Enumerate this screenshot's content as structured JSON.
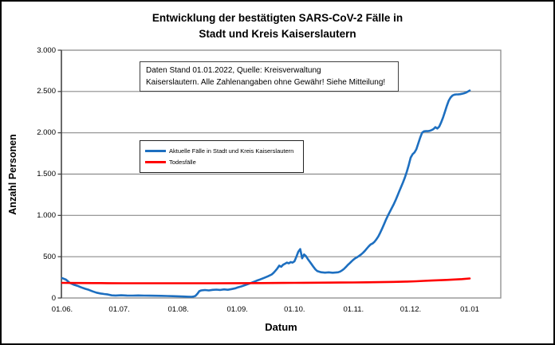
{
  "title": {
    "line1": "Entwicklung der bestätigten SARS-CoV-2 Fälle in",
    "line2": "Stadt und Kreis Kaiserslautern"
  },
  "annotation": {
    "line1": "Daten Stand 01.01.2022, Quelle: Kreisverwaltung",
    "line2": "Kaiserslautern. Alle Zahlenangaben ohne Gewähr! Siehe Mitteilung!"
  },
  "y_axis": {
    "title": "Anzahl Personen",
    "tick_labels": [
      "0",
      "500",
      "1.000",
      "1.500",
      "2.000",
      "2.500",
      "3.000"
    ],
    "tick_values": [
      0,
      500,
      1000,
      1500,
      2000,
      2500,
      3000
    ]
  },
  "x_axis": {
    "title": "Datum",
    "tick_labels": [
      "01.06.",
      "01.07.",
      "01.08.",
      "01.09.",
      "01.10.",
      "01.11.",
      "01.12.",
      "01.01"
    ],
    "tick_days": [
      0,
      30,
      61,
      92,
      122,
      153,
      183,
      214
    ]
  },
  "legend": {
    "items": [
      {
        "label": "Aktuelle Fälle in Stadt und Kreis Kaiserslautern",
        "color": "#1d6fc0"
      },
      {
        "label": "Todesfälle",
        "color": "#ff0000"
      }
    ]
  },
  "colors": {
    "series_active": "#1d6fc0",
    "series_deaths": "#ff0000",
    "gridline": "#8c8c8c",
    "plot_border": "#8c8c8c",
    "axis": "#3a3a3a",
    "text": "#000000",
    "background": "#ffffff"
  },
  "chart_data": {
    "type": "line",
    "title": "Entwicklung der bestätigten SARS-CoV-2 Fälle in Stadt und Kreis Kaiserslautern",
    "xlabel": "Datum",
    "ylabel": "Anzahl Personen",
    "ylim": [
      0,
      3000
    ],
    "grid": true,
    "legend_position": "inside-upper-left",
    "x_unit": "days since 01.06.2021 (0 = 01.06., 214 = 01.01.)",
    "x_tick_labels": [
      "01.06.",
      "01.07.",
      "01.08.",
      "01.09.",
      "01.10.",
      "01.11.",
      "01.12.",
      "01.01"
    ],
    "x_tick_days": [
      0,
      30,
      61,
      92,
      122,
      153,
      183,
      214
    ],
    "series": [
      {
        "name": "Aktuelle Fälle in Stadt und Kreis Kaiserslautern",
        "color": "#1d6fc0",
        "points": [
          [
            0,
            240
          ],
          [
            2,
            222
          ],
          [
            4,
            182
          ],
          [
            6,
            162
          ],
          [
            8,
            148
          ],
          [
            10,
            128
          ],
          [
            12,
            112
          ],
          [
            14,
            98
          ],
          [
            16,
            80
          ],
          [
            18,
            65
          ],
          [
            20,
            55
          ],
          [
            22,
            48
          ],
          [
            24,
            42
          ],
          [
            26,
            32
          ],
          [
            28,
            30
          ],
          [
            31,
            33
          ],
          [
            34,
            30
          ],
          [
            37,
            29
          ],
          [
            40,
            31
          ],
          [
            43,
            29
          ],
          [
            46,
            28
          ],
          [
            49,
            27
          ],
          [
            52,
            26
          ],
          [
            55,
            24
          ],
          [
            58,
            22
          ],
          [
            61,
            20
          ],
          [
            64,
            17
          ],
          [
            66,
            15
          ],
          [
            68,
            14
          ],
          [
            69,
            17
          ],
          [
            70,
            25
          ],
          [
            71,
            50
          ],
          [
            72,
            82
          ],
          [
            73,
            92
          ],
          [
            75,
            96
          ],
          [
            77,
            92
          ],
          [
            79,
            98
          ],
          [
            81,
            101
          ],
          [
            83,
            97
          ],
          [
            85,
            104
          ],
          [
            87,
            99
          ],
          [
            89,
            108
          ],
          [
            91,
            118
          ],
          [
            92,
            126
          ],
          [
            94,
            140
          ],
          [
            96,
            155
          ],
          [
            98,
            172
          ],
          [
            100,
            190
          ],
          [
            102,
            208
          ],
          [
            104,
            225
          ],
          [
            106,
            243
          ],
          [
            108,
            262
          ],
          [
            110,
            285
          ],
          [
            111,
            305
          ],
          [
            112,
            330
          ],
          [
            113,
            358
          ],
          [
            114,
            392
          ],
          [
            115,
            378
          ],
          [
            116,
            402
          ],
          [
            117,
            415
          ],
          [
            118,
            428
          ],
          [
            119,
            420
          ],
          [
            120,
            435
          ],
          [
            121,
            428
          ],
          [
            122,
            445
          ],
          [
            123,
            500
          ],
          [
            124,
            560
          ],
          [
            125,
            592
          ],
          [
            126,
            480
          ],
          [
            127,
            528
          ],
          [
            128,
            508
          ],
          [
            129,
            472
          ],
          [
            130,
            440
          ],
          [
            131,
            408
          ],
          [
            132,
            375
          ],
          [
            133,
            345
          ],
          [
            134,
            325
          ],
          [
            136,
            312
          ],
          [
            138,
            307
          ],
          [
            140,
            311
          ],
          [
            142,
            306
          ],
          [
            144,
            310
          ],
          [
            145,
            312
          ],
          [
            146,
            320
          ],
          [
            147,
            335
          ],
          [
            148,
            352
          ],
          [
            149,
            375
          ],
          [
            150,
            400
          ],
          [
            151,
            422
          ],
          [
            152,
            445
          ],
          [
            153,
            465
          ],
          [
            154,
            482
          ],
          [
            155,
            495
          ],
          [
            156,
            510
          ],
          [
            157,
            528
          ],
          [
            158,
            548
          ],
          [
            159,
            572
          ],
          [
            160,
            600
          ],
          [
            161,
            625
          ],
          [
            162,
            648
          ],
          [
            163,
            660
          ],
          [
            164,
            680
          ],
          [
            165,
            710
          ],
          [
            166,
            745
          ],
          [
            167,
            790
          ],
          [
            168,
            840
          ],
          [
            169,
            890
          ],
          [
            170,
            945
          ],
          [
            171,
            995
          ],
          [
            172,
            1040
          ],
          [
            173,
            1085
          ],
          [
            174,
            1130
          ],
          [
            175,
            1180
          ],
          [
            176,
            1235
          ],
          [
            177,
            1290
          ],
          [
            178,
            1345
          ],
          [
            179,
            1400
          ],
          [
            180,
            1460
          ],
          [
            181,
            1530
          ],
          [
            182,
            1610
          ],
          [
            183,
            1700
          ],
          [
            184,
            1740
          ],
          [
            185,
            1762
          ],
          [
            186,
            1800
          ],
          [
            187,
            1870
          ],
          [
            188,
            1940
          ],
          [
            189,
            2000
          ],
          [
            190,
            2018
          ],
          [
            191,
            2020
          ],
          [
            192,
            2020
          ],
          [
            193,
            2024
          ],
          [
            194,
            2032
          ],
          [
            195,
            2045
          ],
          [
            196,
            2068
          ],
          [
            197,
            2052
          ],
          [
            198,
            2075
          ],
          [
            199,
            2125
          ],
          [
            200,
            2185
          ],
          [
            201,
            2255
          ],
          [
            202,
            2325
          ],
          [
            203,
            2388
          ],
          [
            204,
            2428
          ],
          [
            205,
            2452
          ],
          [
            206,
            2462
          ],
          [
            207,
            2465
          ],
          [
            208,
            2466
          ],
          [
            209,
            2468
          ],
          [
            210,
            2472
          ],
          [
            211,
            2478
          ],
          [
            212,
            2486
          ],
          [
            213,
            2498
          ],
          [
            214,
            2512
          ]
        ]
      },
      {
        "name": "Todesfälle",
        "color": "#ff0000",
        "points": [
          [
            0,
            183
          ],
          [
            8,
            181
          ],
          [
            16,
            180
          ],
          [
            24,
            179
          ],
          [
            32,
            178
          ],
          [
            48,
            178
          ],
          [
            64,
            178
          ],
          [
            80,
            178
          ],
          [
            92,
            179
          ],
          [
            104,
            180
          ],
          [
            116,
            182
          ],
          [
            122,
            183
          ],
          [
            134,
            185
          ],
          [
            146,
            187
          ],
          [
            153,
            188
          ],
          [
            160,
            190
          ],
          [
            167,
            192
          ],
          [
            174,
            195
          ],
          [
            181,
            199
          ],
          [
            186,
            203
          ],
          [
            190,
            207
          ],
          [
            194,
            211
          ],
          [
            198,
            215
          ],
          [
            202,
            219
          ],
          [
            206,
            224
          ],
          [
            210,
            229
          ],
          [
            214,
            236
          ]
        ]
      }
    ]
  }
}
